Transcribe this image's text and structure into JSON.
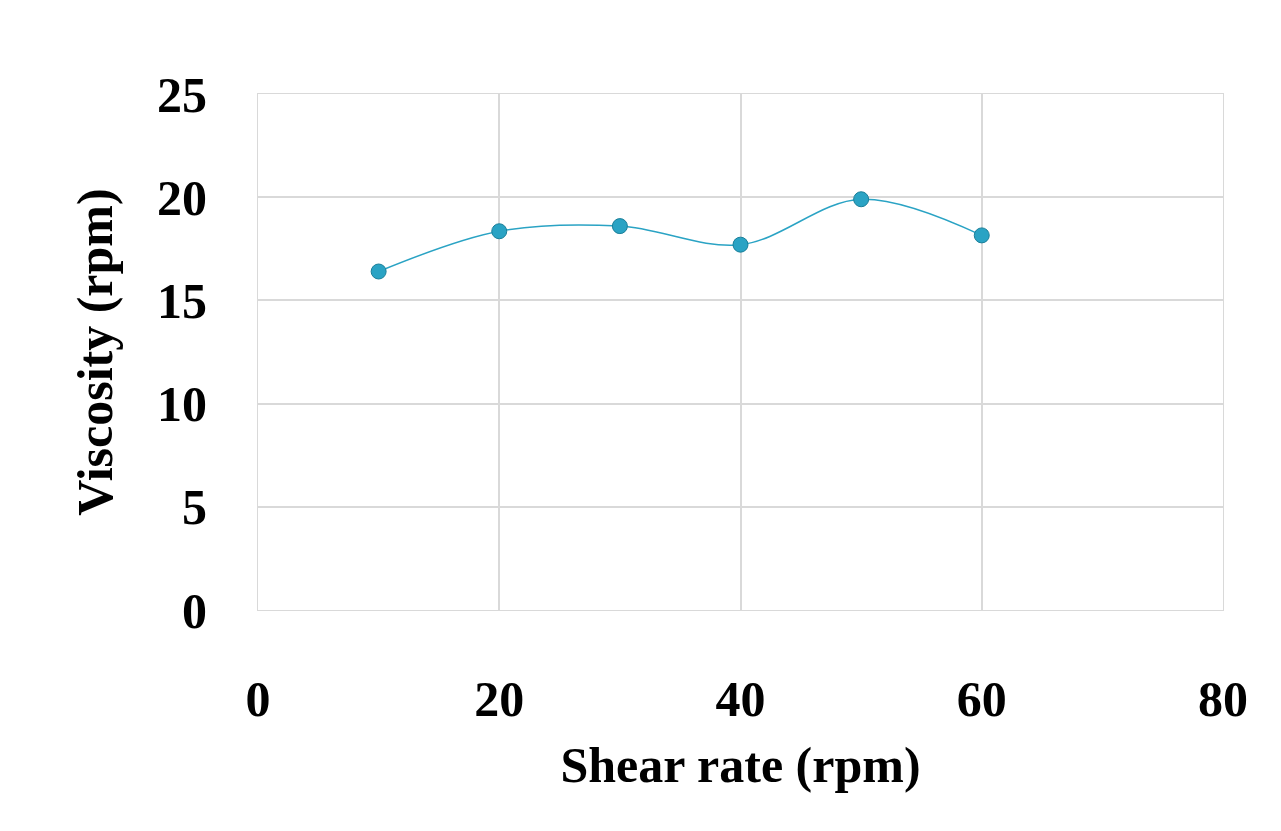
{
  "chart_data": {
    "type": "line",
    "xlabel": "Shear rate (rpm)",
    "ylabel": "Viscosity (rpm)",
    "x": [
      10,
      20,
      30,
      40,
      50,
      60
    ],
    "series": [
      {
        "color": "#2aa3c4",
        "values": [
          16.4,
          18.35,
          18.6,
          17.7,
          19.9,
          18.15
        ]
      }
    ],
    "xlim": [
      0,
      80
    ],
    "xticks": [
      0,
      20,
      40,
      60,
      80
    ],
    "ylim": [
      0,
      25
    ],
    "yticks": [
      0,
      5,
      10,
      15,
      20,
      25
    ],
    "grid": true,
    "marker": "circle",
    "line_style": "solid"
  }
}
